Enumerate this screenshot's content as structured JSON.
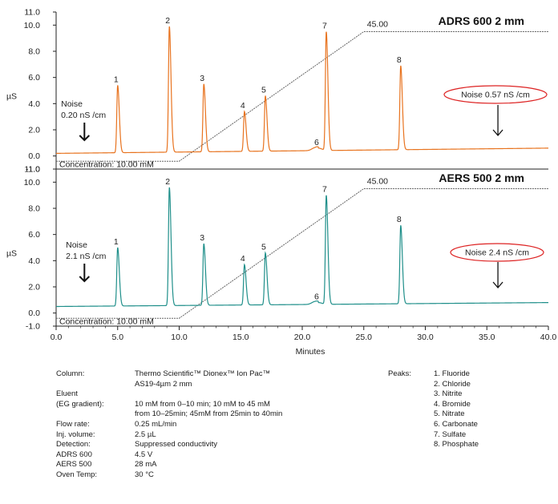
{
  "chart_data": {
    "type": "line",
    "xlabel": "Minutes",
    "ylabel": "µS",
    "xlim": [
      0,
      40
    ],
    "x_ticks": [
      "0.0",
      "5.0",
      "10.0",
      "15.0",
      "20.0",
      "25.0",
      "30.0",
      "35.0",
      "40.0"
    ],
    "panels": [
      {
        "title": "ADRS 600 2 mm",
        "color": "#e8731f",
        "ylim": [
          -1,
          11
        ],
        "y_ticks": [
          "-1.0",
          "0.0",
          "2.0",
          "4.0",
          "6.0",
          "8.0",
          "10.0",
          "11.0"
        ],
        "baseline": 0.2,
        "baseline_end": 0.6,
        "peaks": [
          {
            "label": "1",
            "x": 5.0,
            "y": 5.4
          },
          {
            "label": "2",
            "x": 9.2,
            "y": 9.9
          },
          {
            "label": "3",
            "x": 12.0,
            "y": 5.5
          },
          {
            "label": "4",
            "x": 15.3,
            "y": 3.4
          },
          {
            "label": "5",
            "x": 17.0,
            "y": 4.6
          },
          {
            "label": "6",
            "x": 21.3,
            "y": 0.6
          },
          {
            "label": "7",
            "x": 21.95,
            "y": 9.5
          },
          {
            "label": "8",
            "x": 28.0,
            "y": 6.9
          }
        ],
        "noise_left": {
          "line1": "Noise",
          "line2": "0.20   nS /cm"
        },
        "noise_right": {
          "text": "Noise 0.57      nS /cm"
        },
        "gradient_label": "45.00",
        "concentration_label": "Concentration: 10.00 mM"
      },
      {
        "title": "AERS 500 2 mm",
        "color": "#1f8f8a",
        "ylim": [
          -1,
          11
        ],
        "y_ticks": [
          "-1.0",
          "0.0",
          "2.0",
          "4.0",
          "6.0",
          "8.0",
          "10.0",
          "11.0"
        ],
        "baseline": 0.5,
        "baseline_end": 0.8,
        "peaks": [
          {
            "label": "1",
            "x": 5.0,
            "y": 5.0
          },
          {
            "label": "2",
            "x": 9.2,
            "y": 9.6
          },
          {
            "label": "3",
            "x": 12.0,
            "y": 5.3
          },
          {
            "label": "4",
            "x": 15.3,
            "y": 3.7
          },
          {
            "label": "5",
            "x": 17.0,
            "y": 4.6
          },
          {
            "label": "6",
            "x": 21.3,
            "y": 0.8
          },
          {
            "label": "7",
            "x": 21.95,
            "y": 9.0
          },
          {
            "label": "8",
            "x": 28.0,
            "y": 6.7
          }
        ],
        "noise_left": {
          "line1": "Noise",
          "line2": "2.1   nS /cm"
        },
        "noise_right": {
          "text": "Noise 2.4      nS /cm"
        },
        "gradient_label": "45.00",
        "concentration_label": "Concentration: 10.00 mM"
      }
    ]
  },
  "conditions": [
    {
      "label": "Column:",
      "value": "Thermo Scientific™ Dionex™ Ion Pac™"
    },
    {
      "label": "",
      "value": "AS19-4µm 2 mm"
    },
    {
      "label": "Eluent",
      "value": ""
    },
    {
      "label": "(EG gradient):",
      "value": "10 mM from 0–10 min; 10 mM to 45 mM"
    },
    {
      "label": "",
      "value": "from 10–25min; 45mM from 25min to 40min"
    },
    {
      "label": "Flow rate:",
      "value": "0.25 mL/min"
    },
    {
      "label": "Inj. volume:",
      "value": "2.5 µL"
    },
    {
      "label": "Detection:",
      "value": "Suppressed conductivity"
    },
    {
      "label": "ADRS 600",
      "value": "4.5 V"
    },
    {
      "label": "AERS 500",
      "value": "28 mA"
    },
    {
      "label": "Oven Temp:",
      "value": "30 °C"
    }
  ],
  "peaks_legend": {
    "label": "Peaks:",
    "items": [
      "1. Fluoride",
      "2. Chloride",
      "3. Nitrite",
      "4. Bromide",
      "5. Nitrate",
      "6. Carbonate",
      "7. Sulfate",
      "8. Phosphate"
    ]
  }
}
